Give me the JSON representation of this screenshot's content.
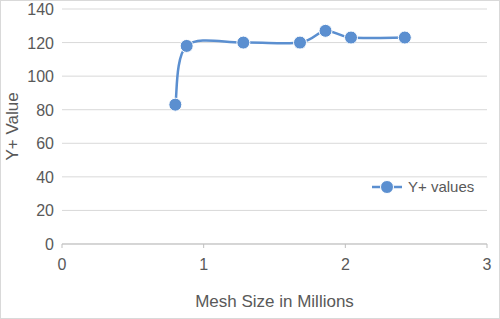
{
  "chart_data": {
    "type": "line",
    "xlabel": "Mesh Size in Millions",
    "ylabel": "Y+ Value",
    "x": [
      0.8,
      0.88,
      1.28,
      1.68,
      1.86,
      2.04,
      2.42
    ],
    "series": [
      {
        "name": "Y+ values",
        "color": "#5b8fd0",
        "marker": "circle",
        "line_style": "smooth",
        "values": [
          83,
          118,
          120,
          120,
          127,
          123,
          123
        ]
      }
    ],
    "xlim": [
      0,
      3
    ],
    "xticks": [
      0,
      1,
      2,
      3
    ],
    "ylim": [
      0,
      140
    ],
    "yticks": [
      0,
      20,
      40,
      60,
      80,
      100,
      120,
      140
    ],
    "grid": true,
    "legend": "right"
  }
}
